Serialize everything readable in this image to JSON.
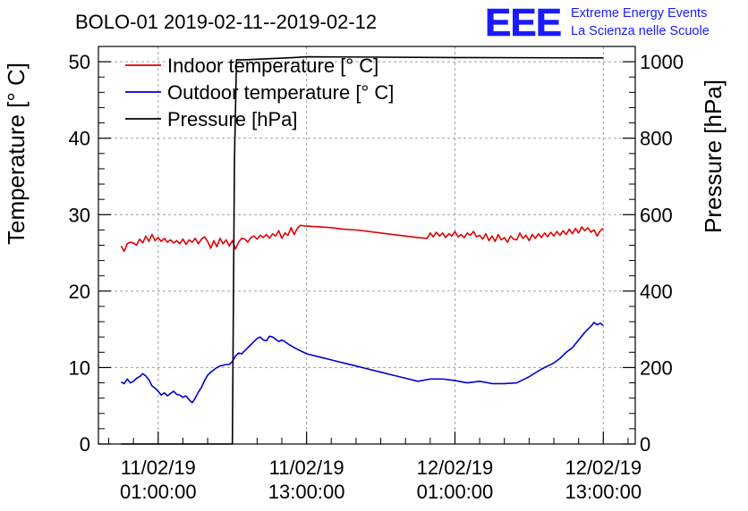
{
  "chart_data": {
    "type": "line",
    "title": "BOLO-01 2019-02-11--2019-02-12",
    "logo": {
      "text": "EEE",
      "line1": "Extreme Energy Events",
      "line2": "La Scienza nelle Scuole",
      "color": "#1a1aff"
    },
    "xlabel": "",
    "ylabel": "Temperature [° C]",
    "y2label": "Pressure [hPa]",
    "xlim": [
      "2019-02-10 20:10:00",
      "2019-02-12 15:35:00"
    ],
    "ylim": [
      0,
      52
    ],
    "y2lim": [
      0,
      1040
    ],
    "grid": true,
    "legend_placement": "top-left",
    "x_ticks": [
      {
        "date": "11/02/19",
        "time": "01:00:00",
        "at": "2019-02-11 01:00:00"
      },
      {
        "date": "11/02/19",
        "time": "13:00:00",
        "at": "2019-02-11 13:00:00"
      },
      {
        "date": "12/02/19",
        "time": "01:00:00",
        "at": "2019-02-12 01:00:00"
      },
      {
        "date": "12/02/19",
        "time": "13:00:00",
        "at": "2019-02-12 13:00:00"
      }
    ],
    "y_ticks": [
      0,
      10,
      20,
      30,
      40,
      50
    ],
    "y2_ticks": [
      0,
      200,
      400,
      600,
      800,
      1000
    ],
    "series": [
      {
        "name": "Indoor temperature [° C]",
        "axis": "left",
        "color": "#e00000",
        "points": [
          [
            "2019-02-10 22:00",
            25.9
          ],
          [
            "2019-02-10 22:15",
            25.2
          ],
          [
            "2019-02-10 22:30",
            26.2
          ],
          [
            "2019-02-10 22:45",
            26.4
          ],
          [
            "2019-02-10 23:00",
            26.3
          ],
          [
            "2019-02-10 23:15",
            26.0
          ],
          [
            "2019-02-10 23:30",
            26.8
          ],
          [
            "2019-02-10 23:45",
            26.3
          ],
          [
            "2019-02-11 00:00",
            27.2
          ],
          [
            "2019-02-11 00:15",
            26.5
          ],
          [
            "2019-02-11 00:30",
            27.4
          ],
          [
            "2019-02-11 00:45",
            26.6
          ],
          [
            "2019-02-11 01:00",
            27.0
          ],
          [
            "2019-02-11 01:15",
            26.5
          ],
          [
            "2019-02-11 01:30",
            26.9
          ],
          [
            "2019-02-11 01:45",
            26.4
          ],
          [
            "2019-02-11 02:00",
            26.7
          ],
          [
            "2019-02-11 02:15",
            26.3
          ],
          [
            "2019-02-11 02:30",
            26.6
          ],
          [
            "2019-02-11 02:45",
            26.2
          ],
          [
            "2019-02-11 03:00",
            26.8
          ],
          [
            "2019-02-11 03:15",
            26.1
          ],
          [
            "2019-02-11 03:30",
            26.7
          ],
          [
            "2019-02-11 03:45",
            26.4
          ],
          [
            "2019-02-11 04:00",
            26.9
          ],
          [
            "2019-02-11 04:15",
            26.2
          ],
          [
            "2019-02-11 04:30",
            26.8
          ],
          [
            "2019-02-11 04:45",
            27.1
          ],
          [
            "2019-02-11 05:00",
            26.5
          ],
          [
            "2019-02-11 05:15",
            25.6
          ],
          [
            "2019-02-11 05:30",
            26.6
          ],
          [
            "2019-02-11 05:45",
            25.8
          ],
          [
            "2019-02-11 06:00",
            26.9
          ],
          [
            "2019-02-11 06:15",
            26.2
          ],
          [
            "2019-02-11 06:30",
            26.7
          ],
          [
            "2019-02-11 06:45",
            25.9
          ],
          [
            "2019-02-11 07:00",
            26.6
          ],
          [
            "2019-02-11 07:15",
            25.5
          ],
          [
            "2019-02-11 07:30",
            26.4
          ],
          [
            "2019-02-11 07:45",
            26.9
          ],
          [
            "2019-02-11 08:00",
            26.8
          ],
          [
            "2019-02-11 08:15",
            26.4
          ],
          [
            "2019-02-11 08:30",
            27.0
          ],
          [
            "2019-02-11 08:45",
            27.2
          ],
          [
            "2019-02-11 09:00",
            26.8
          ],
          [
            "2019-02-11 09:15",
            27.3
          ],
          [
            "2019-02-11 09:30",
            27.0
          ],
          [
            "2019-02-11 09:45",
            27.4
          ],
          [
            "2019-02-11 10:00",
            26.9
          ],
          [
            "2019-02-11 10:15",
            27.5
          ],
          [
            "2019-02-11 10:30",
            27.2
          ],
          [
            "2019-02-11 10:45",
            27.9
          ],
          [
            "2019-02-11 11:00",
            26.9
          ],
          [
            "2019-02-11 11:15",
            27.6
          ],
          [
            "2019-02-11 11:30",
            27.3
          ],
          [
            "2019-02-11 11:45",
            28.3
          ],
          [
            "2019-02-11 12:00",
            27.4
          ],
          [
            "2019-02-11 12:15",
            28.2
          ],
          [
            "2019-02-11 12:30",
            28.6
          ],
          [
            "2019-02-11 13:00",
            28.5
          ],
          [
            "2019-02-11 14:00",
            28.4
          ],
          [
            "2019-02-11 15:00",
            28.3
          ],
          [
            "2019-02-11 16:00",
            28.1
          ],
          [
            "2019-02-11 17:00",
            28.0
          ],
          [
            "2019-02-11 18:00",
            27.8
          ],
          [
            "2019-02-11 19:00",
            27.6
          ],
          [
            "2019-02-11 20:00",
            27.4
          ],
          [
            "2019-02-11 21:00",
            27.2
          ],
          [
            "2019-02-11 22:00",
            27.0
          ],
          [
            "2019-02-11 22:45",
            26.9
          ],
          [
            "2019-02-11 23:00",
            27.6
          ],
          [
            "2019-02-11 23:15",
            27.1
          ],
          [
            "2019-02-11 23:30",
            27.7
          ],
          [
            "2019-02-11 23:45",
            27.2
          ],
          [
            "2019-02-12 00:00",
            27.6
          ],
          [
            "2019-02-12 00:15",
            27.0
          ],
          [
            "2019-02-12 00:30",
            27.5
          ],
          [
            "2019-02-12 00:45",
            27.2
          ],
          [
            "2019-02-12 01:00",
            27.8
          ],
          [
            "2019-02-12 01:15",
            27.1
          ],
          [
            "2019-02-12 01:30",
            27.4
          ],
          [
            "2019-02-12 01:45",
            27.0
          ],
          [
            "2019-02-12 02:00",
            27.6
          ],
          [
            "2019-02-12 02:15",
            27.3
          ],
          [
            "2019-02-12 02:30",
            27.8
          ],
          [
            "2019-02-12 02:45",
            27.1
          ],
          [
            "2019-02-12 03:00",
            27.3
          ],
          [
            "2019-02-12 03:15",
            26.8
          ],
          [
            "2019-02-12 03:30",
            27.5
          ],
          [
            "2019-02-12 03:45",
            26.6
          ],
          [
            "2019-02-12 04:00",
            27.2
          ],
          [
            "2019-02-12 04:15",
            26.5
          ],
          [
            "2019-02-12 04:30",
            27.4
          ],
          [
            "2019-02-12 04:45",
            26.7
          ],
          [
            "2019-02-12 05:00",
            27.0
          ],
          [
            "2019-02-12 05:15",
            26.4
          ],
          [
            "2019-02-12 05:30",
            27.2
          ],
          [
            "2019-02-12 05:45",
            26.8
          ],
          [
            "2019-02-12 06:00",
            26.7
          ],
          [
            "2019-02-12 06:15",
            27.6
          ],
          [
            "2019-02-12 06:30",
            26.9
          ],
          [
            "2019-02-12 06:45",
            27.3
          ],
          [
            "2019-02-12 07:00",
            26.6
          ],
          [
            "2019-02-12 07:15",
            27.4
          ],
          [
            "2019-02-12 07:30",
            26.9
          ],
          [
            "2019-02-12 07:45",
            27.5
          ],
          [
            "2019-02-12 08:00",
            27.0
          ],
          [
            "2019-02-12 08:15",
            27.6
          ],
          [
            "2019-02-12 08:30",
            27.1
          ],
          [
            "2019-02-12 08:45",
            27.7
          ],
          [
            "2019-02-12 09:00",
            27.2
          ],
          [
            "2019-02-12 09:15",
            27.8
          ],
          [
            "2019-02-12 09:30",
            27.3
          ],
          [
            "2019-02-12 09:45",
            27.9
          ],
          [
            "2019-02-12 10:00",
            27.4
          ],
          [
            "2019-02-12 10:15",
            28.1
          ],
          [
            "2019-02-12 10:30",
            27.5
          ],
          [
            "2019-02-12 10:45",
            28.2
          ],
          [
            "2019-02-12 11:00",
            27.6
          ],
          [
            "2019-02-12 11:15",
            28.4
          ],
          [
            "2019-02-12 11:30",
            27.9
          ],
          [
            "2019-02-12 11:45",
            28.3
          ],
          [
            "2019-02-12 12:00",
            27.7
          ],
          [
            "2019-02-12 12:15",
            28.0
          ],
          [
            "2019-02-12 12:30",
            27.2
          ],
          [
            "2019-02-12 12:45",
            27.9
          ],
          [
            "2019-02-12 13:00",
            28.2
          ]
        ]
      },
      {
        "name": "Outdoor temperature [° C]",
        "axis": "left",
        "color": "#0000d0",
        "points": [
          [
            "2019-02-10 22:00",
            8.1
          ],
          [
            "2019-02-10 22:15",
            7.9
          ],
          [
            "2019-02-10 22:30",
            8.5
          ],
          [
            "2019-02-10 22:45",
            8.0
          ],
          [
            "2019-02-10 23:00",
            8.2
          ],
          [
            "2019-02-10 23:15",
            8.6
          ],
          [
            "2019-02-10 23:30",
            8.8
          ],
          [
            "2019-02-10 23:45",
            9.2
          ],
          [
            "2019-02-11 00:00",
            8.9
          ],
          [
            "2019-02-11 00:15",
            8.4
          ],
          [
            "2019-02-11 00:30",
            7.6
          ],
          [
            "2019-02-11 00:45",
            7.3
          ],
          [
            "2019-02-11 01:00",
            6.9
          ],
          [
            "2019-02-11 01:15",
            6.4
          ],
          [
            "2019-02-11 01:30",
            6.7
          ],
          [
            "2019-02-11 01:45",
            6.3
          ],
          [
            "2019-02-11 02:00",
            6.6
          ],
          [
            "2019-02-11 02:15",
            6.9
          ],
          [
            "2019-02-11 02:30",
            6.5
          ],
          [
            "2019-02-11 02:45",
            6.4
          ],
          [
            "2019-02-11 03:00",
            6.1
          ],
          [
            "2019-02-11 03:15",
            6.3
          ],
          [
            "2019-02-11 03:30",
            5.8
          ],
          [
            "2019-02-11 03:45",
            5.4
          ],
          [
            "2019-02-11 04:00",
            6.0
          ],
          [
            "2019-02-11 04:15",
            6.8
          ],
          [
            "2019-02-11 04:30",
            7.4
          ],
          [
            "2019-02-11 04:45",
            8.3
          ],
          [
            "2019-02-11 05:00",
            9.0
          ],
          [
            "2019-02-11 05:15",
            9.4
          ],
          [
            "2019-02-11 05:30",
            9.7
          ],
          [
            "2019-02-11 05:45",
            10.0
          ],
          [
            "2019-02-11 06:00",
            10.2
          ],
          [
            "2019-02-11 06:15",
            10.3
          ],
          [
            "2019-02-11 06:30",
            10.4
          ],
          [
            "2019-02-11 06:45",
            10.4
          ],
          [
            "2019-02-11 07:00",
            10.8
          ],
          [
            "2019-02-11 07:15",
            11.5
          ],
          [
            "2019-02-11 07:30",
            11.9
          ],
          [
            "2019-02-11 07:45",
            11.8
          ],
          [
            "2019-02-11 08:00",
            12.2
          ],
          [
            "2019-02-11 08:15",
            12.6
          ],
          [
            "2019-02-11 08:30",
            13.0
          ],
          [
            "2019-02-11 08:45",
            13.4
          ],
          [
            "2019-02-11 09:00",
            13.8
          ],
          [
            "2019-02-11 09:15",
            14.0
          ],
          [
            "2019-02-11 09:30",
            13.6
          ],
          [
            "2019-02-11 09:45",
            13.5
          ],
          [
            "2019-02-11 10:00",
            14.1
          ],
          [
            "2019-02-11 10:15",
            14.0
          ],
          [
            "2019-02-11 10:30",
            13.7
          ],
          [
            "2019-02-11 10:45",
            13.4
          ],
          [
            "2019-02-11 11:00",
            13.6
          ],
          [
            "2019-02-11 11:15",
            13.4
          ],
          [
            "2019-02-11 11:30",
            13.1
          ],
          [
            "2019-02-11 12:00",
            12.6
          ],
          [
            "2019-02-11 13:00",
            11.8
          ],
          [
            "2019-02-11 14:00",
            11.4
          ],
          [
            "2019-02-11 15:00",
            11.0
          ],
          [
            "2019-02-11 16:00",
            10.6
          ],
          [
            "2019-02-11 17:00",
            10.2
          ],
          [
            "2019-02-11 18:00",
            9.8
          ],
          [
            "2019-02-11 19:00",
            9.4
          ],
          [
            "2019-02-11 20:00",
            9.0
          ],
          [
            "2019-02-11 21:00",
            8.6
          ],
          [
            "2019-02-11 22:00",
            8.2
          ],
          [
            "2019-02-11 23:00",
            8.5
          ],
          [
            "2019-02-12 00:00",
            8.5
          ],
          [
            "2019-02-12 01:00",
            8.3
          ],
          [
            "2019-02-12 02:00",
            8.0
          ],
          [
            "2019-02-12 03:00",
            8.2
          ],
          [
            "2019-02-12 04:00",
            7.9
          ],
          [
            "2019-02-12 05:00",
            7.9
          ],
          [
            "2019-02-12 06:00",
            8.0
          ],
          [
            "2019-02-12 07:00",
            8.8
          ],
          [
            "2019-02-12 08:00",
            9.8
          ],
          [
            "2019-02-12 09:00",
            10.6
          ],
          [
            "2019-02-12 09:30",
            11.2
          ],
          [
            "2019-02-12 10:00",
            12.0
          ],
          [
            "2019-02-12 10:30",
            12.6
          ],
          [
            "2019-02-12 11:00",
            13.6
          ],
          [
            "2019-02-12 11:30",
            14.6
          ],
          [
            "2019-02-12 12:00",
            15.4
          ],
          [
            "2019-02-12 12:15",
            15.9
          ],
          [
            "2019-02-12 12:30",
            15.6
          ],
          [
            "2019-02-12 12:45",
            15.8
          ],
          [
            "2019-02-12 13:00",
            15.5
          ]
        ]
      },
      {
        "name": "Pressure [hPa]",
        "axis": "right",
        "color": "#000000",
        "points": [
          [
            "2019-02-10 22:00",
            0
          ],
          [
            "2019-02-11 07:00",
            0
          ],
          [
            "2019-02-11 07:10",
            740
          ],
          [
            "2019-02-11 07:20",
            1005
          ],
          [
            "2019-02-11 08:00",
            1005
          ],
          [
            "2019-02-11 12:00",
            1011
          ],
          [
            "2019-02-11 13:00",
            1013
          ],
          [
            "2019-02-12 01:00",
            1011
          ],
          [
            "2019-02-12 13:00",
            1010
          ]
        ]
      }
    ]
  }
}
